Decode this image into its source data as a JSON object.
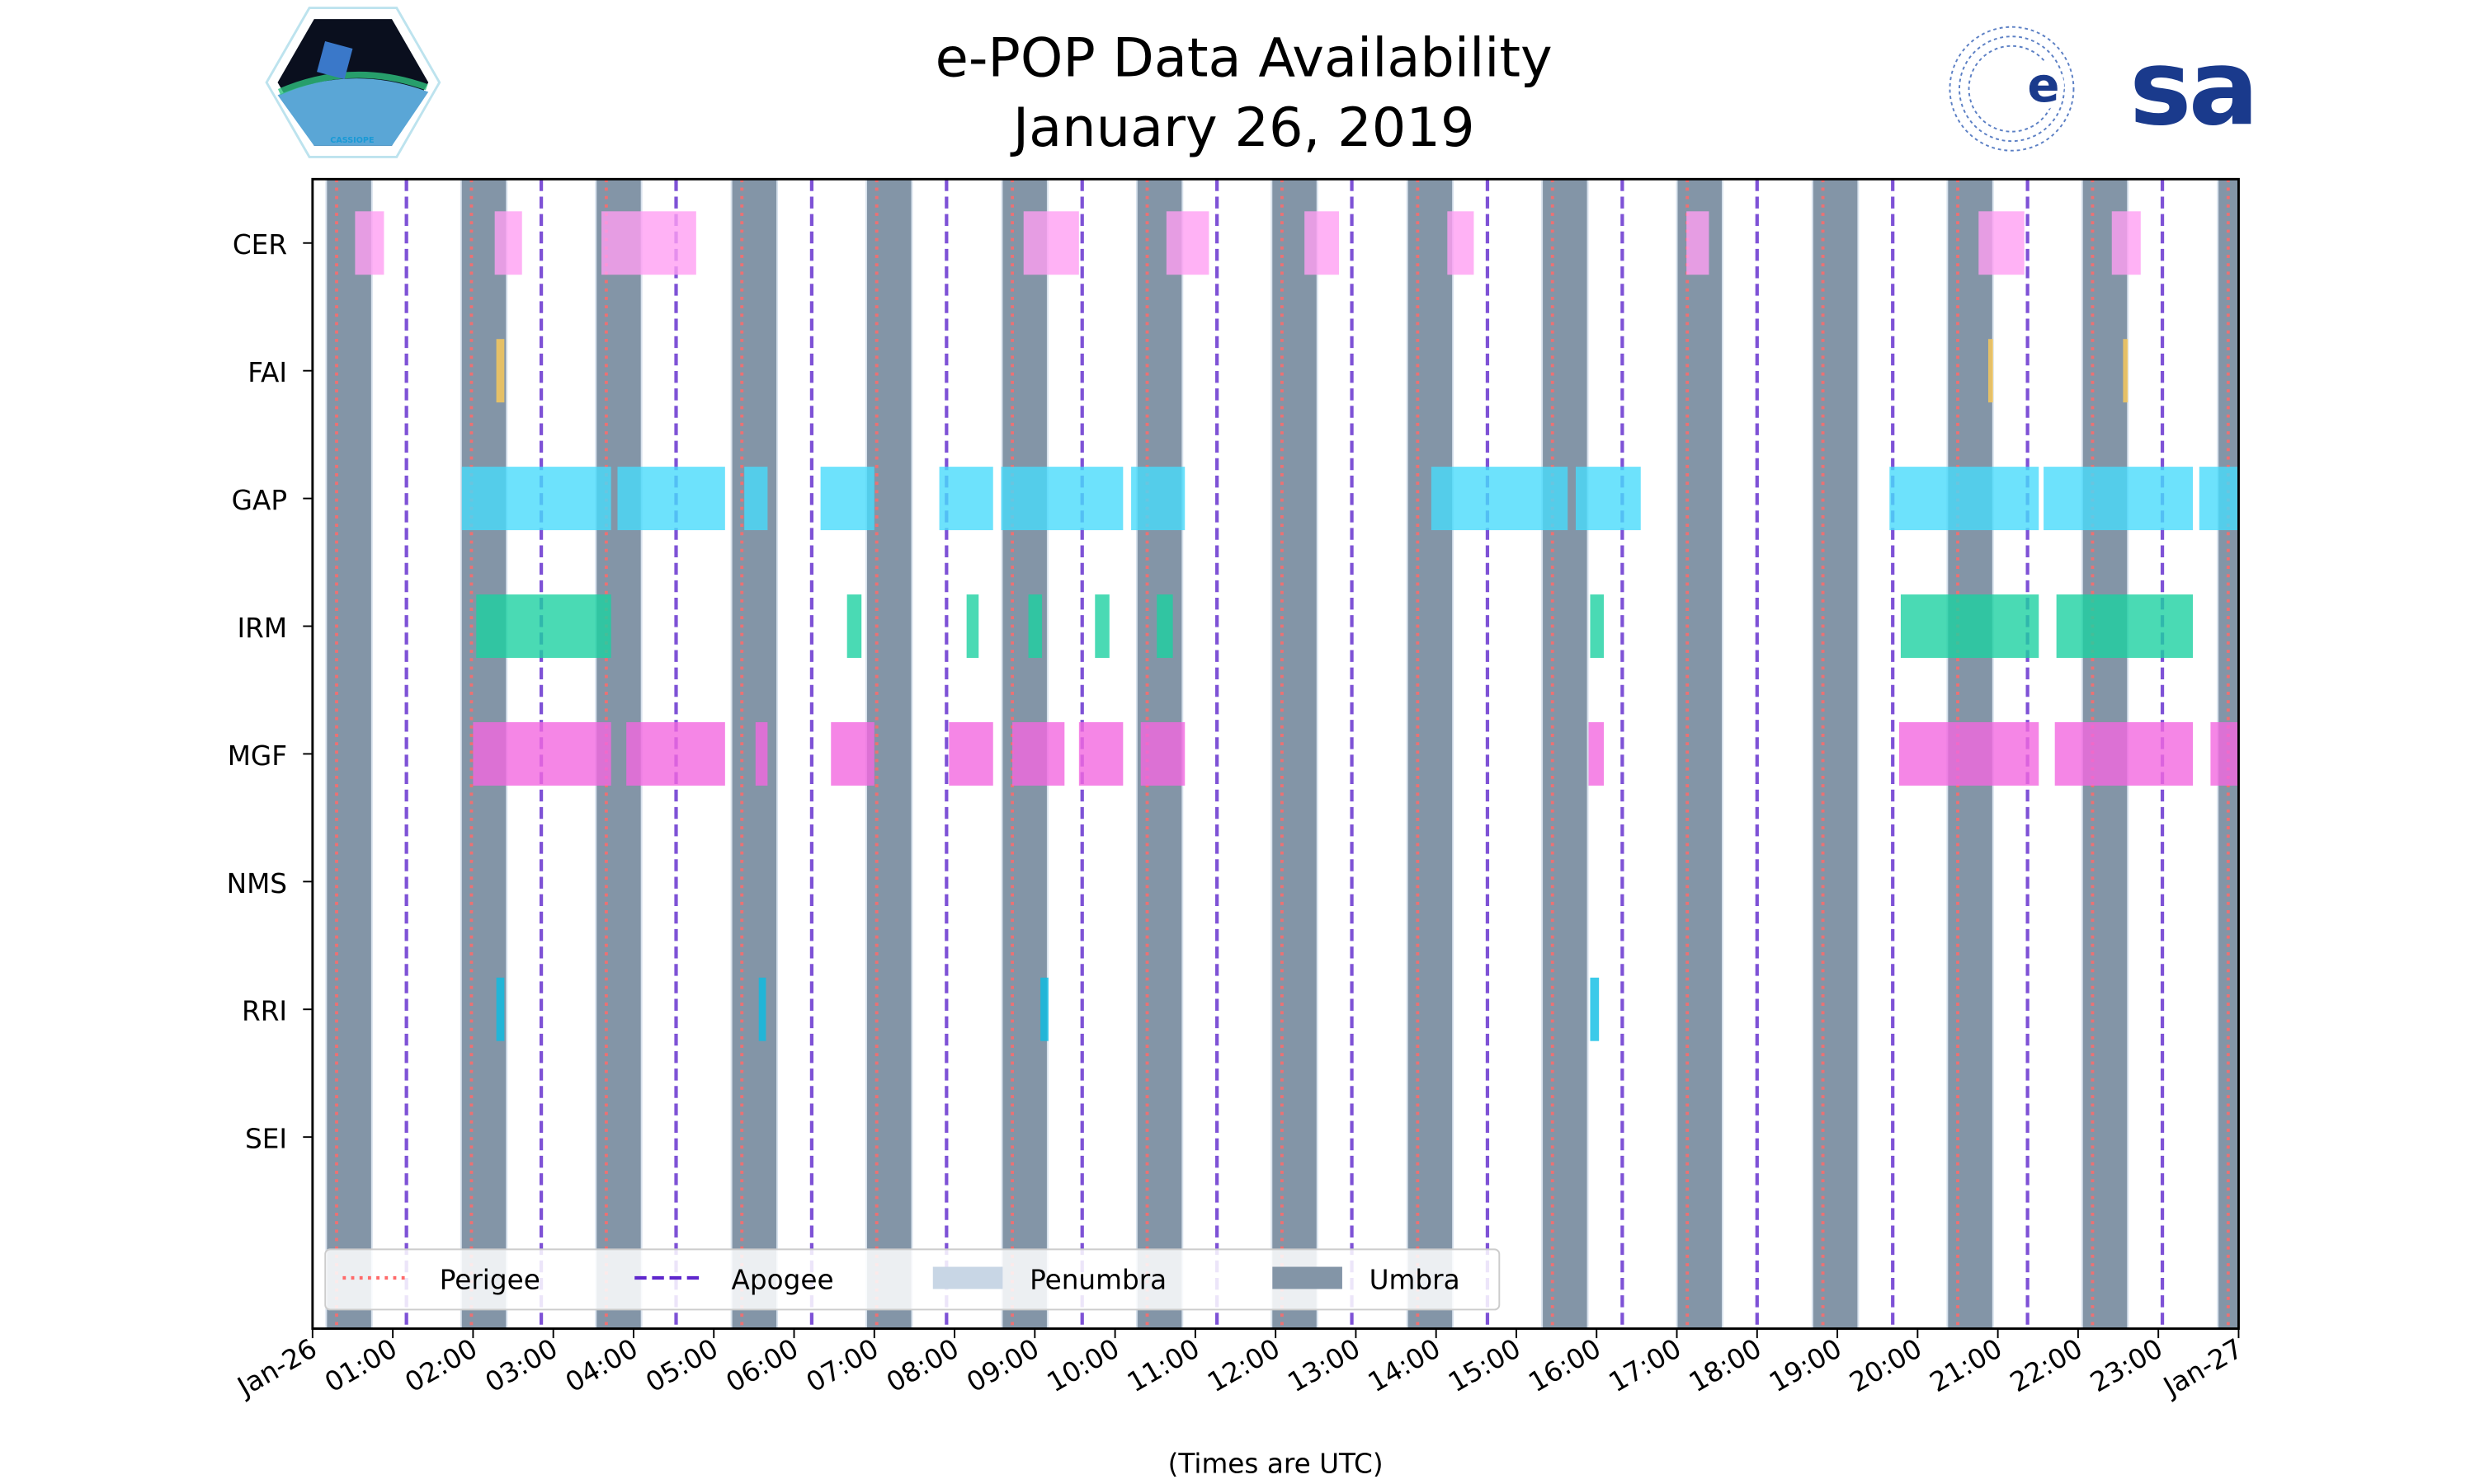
{
  "header": {
    "title_line1": "e-POP Data Availability",
    "title_line2": "January 26, 2019",
    "left_logo_text": "CASSIOPE",
    "right_logo_text": "esa"
  },
  "chart_data": {
    "type": "timeline",
    "title": "e-POP Data Availability January 26, 2019",
    "xlabel": "(Times are UTC)",
    "xlim_hours": [
      0,
      24
    ],
    "x_tick_labels": [
      "Jan-26",
      "01:00",
      "02:00",
      "03:00",
      "04:00",
      "05:00",
      "06:00",
      "07:00",
      "08:00",
      "09:00",
      "10:00",
      "11:00",
      "12:00",
      "13:00",
      "14:00",
      "15:00",
      "16:00",
      "17:00",
      "18:00",
      "19:00",
      "20:00",
      "21:00",
      "22:00",
      "23:00",
      "Jan-27"
    ],
    "instruments": [
      {
        "name": "CER",
        "color": "#ff9ff3",
        "intervals": [
          [
            0.53,
            0.89
          ],
          [
            2.27,
            2.61
          ],
          [
            3.6,
            4.78
          ],
          [
            8.86,
            9.55
          ],
          [
            10.64,
            11.17
          ],
          [
            12.36,
            12.79
          ],
          [
            14.14,
            14.47
          ],
          [
            17.12,
            17.4
          ],
          [
            20.76,
            21.33
          ],
          [
            22.42,
            22.78
          ]
        ]
      },
      {
        "name": "FAI",
        "color": "#feca57",
        "intervals": [
          [
            2.29,
            2.39
          ],
          [
            20.88,
            20.94
          ],
          [
            22.56,
            22.62
          ]
        ]
      },
      {
        "name": "GAP",
        "color": "#48dbfb",
        "intervals": [
          [
            1.86,
            3.72
          ],
          [
            3.8,
            5.14
          ],
          [
            5.38,
            5.67
          ],
          [
            6.33,
            7.0
          ],
          [
            7.81,
            8.48
          ],
          [
            8.58,
            10.1
          ],
          [
            10.2,
            10.87
          ],
          [
            13.94,
            15.64
          ],
          [
            15.74,
            16.55
          ],
          [
            19.65,
            21.51
          ],
          [
            21.57,
            23.43
          ],
          [
            23.51,
            24.0
          ]
        ]
      },
      {
        "name": "IRM",
        "color": "#1dd1a1",
        "intervals": [
          [
            2.04,
            3.72
          ],
          [
            6.66,
            6.84
          ],
          [
            8.15,
            8.3
          ],
          [
            8.92,
            9.09
          ],
          [
            9.75,
            9.93
          ],
          [
            10.52,
            10.72
          ],
          [
            15.92,
            16.09
          ],
          [
            19.79,
            21.51
          ],
          [
            21.73,
            23.43
          ]
        ]
      },
      {
        "name": "MGF",
        "color": "#f368e0",
        "intervals": [
          [
            2.0,
            3.72
          ],
          [
            3.91,
            5.14
          ],
          [
            5.52,
            5.67
          ],
          [
            6.46,
            7.0
          ],
          [
            7.93,
            8.48
          ],
          [
            8.72,
            9.37
          ],
          [
            9.55,
            10.1
          ],
          [
            10.32,
            10.87
          ],
          [
            15.9,
            16.09
          ],
          [
            19.77,
            21.51
          ],
          [
            21.71,
            23.43
          ],
          [
            23.65,
            24.0
          ]
        ]
      },
      {
        "name": "NMS",
        "color": "#54a0ff",
        "intervals": []
      },
      {
        "name": "RRI",
        "color": "#0abde3",
        "intervals": [
          [
            2.29,
            2.39
          ],
          [
            5.56,
            5.65
          ],
          [
            9.07,
            9.17
          ],
          [
            15.92,
            16.03
          ]
        ]
      },
      {
        "name": "SEI",
        "color": "#5f27cd",
        "intervals": []
      }
    ],
    "perigee_hours": [
      0.3,
      1.98,
      3.66,
      5.35,
      7.03,
      8.72,
      10.4,
      12.08,
      13.77,
      15.45,
      17.13,
      18.82,
      20.5,
      22.18,
      23.87
    ],
    "apogee_hours": [
      1.17,
      2.85,
      4.53,
      6.22,
      7.9,
      9.59,
      11.27,
      12.95,
      14.64,
      16.32,
      18.0,
      19.69,
      21.37,
      23.05
    ],
    "umbra_intervals": [
      [
        0.18,
        0.73
      ],
      [
        1.86,
        2.41
      ],
      [
        3.54,
        4.09
      ],
      [
        5.23,
        5.78
      ],
      [
        6.91,
        7.46
      ],
      [
        8.6,
        9.15
      ],
      [
        10.28,
        10.83
      ],
      [
        11.96,
        12.51
      ],
      [
        13.65,
        14.2
      ],
      [
        15.33,
        15.88
      ],
      [
        17.01,
        17.56
      ],
      [
        18.7,
        19.25
      ],
      [
        20.38,
        20.93
      ],
      [
        22.06,
        22.61
      ],
      [
        23.75,
        24.0
      ]
    ],
    "legend": {
      "placement": "bottom-left",
      "entries": [
        {
          "label": "Perigee",
          "style": "dotted",
          "color": "#ff6b6b"
        },
        {
          "label": "Apogee",
          "style": "dashed",
          "color": "#5f27cd"
        },
        {
          "label": "Penumbra",
          "style": "patch",
          "color": "#c8d6e5"
        },
        {
          "label": "Umbra",
          "style": "patch",
          "color": "#8395a7"
        }
      ]
    }
  }
}
